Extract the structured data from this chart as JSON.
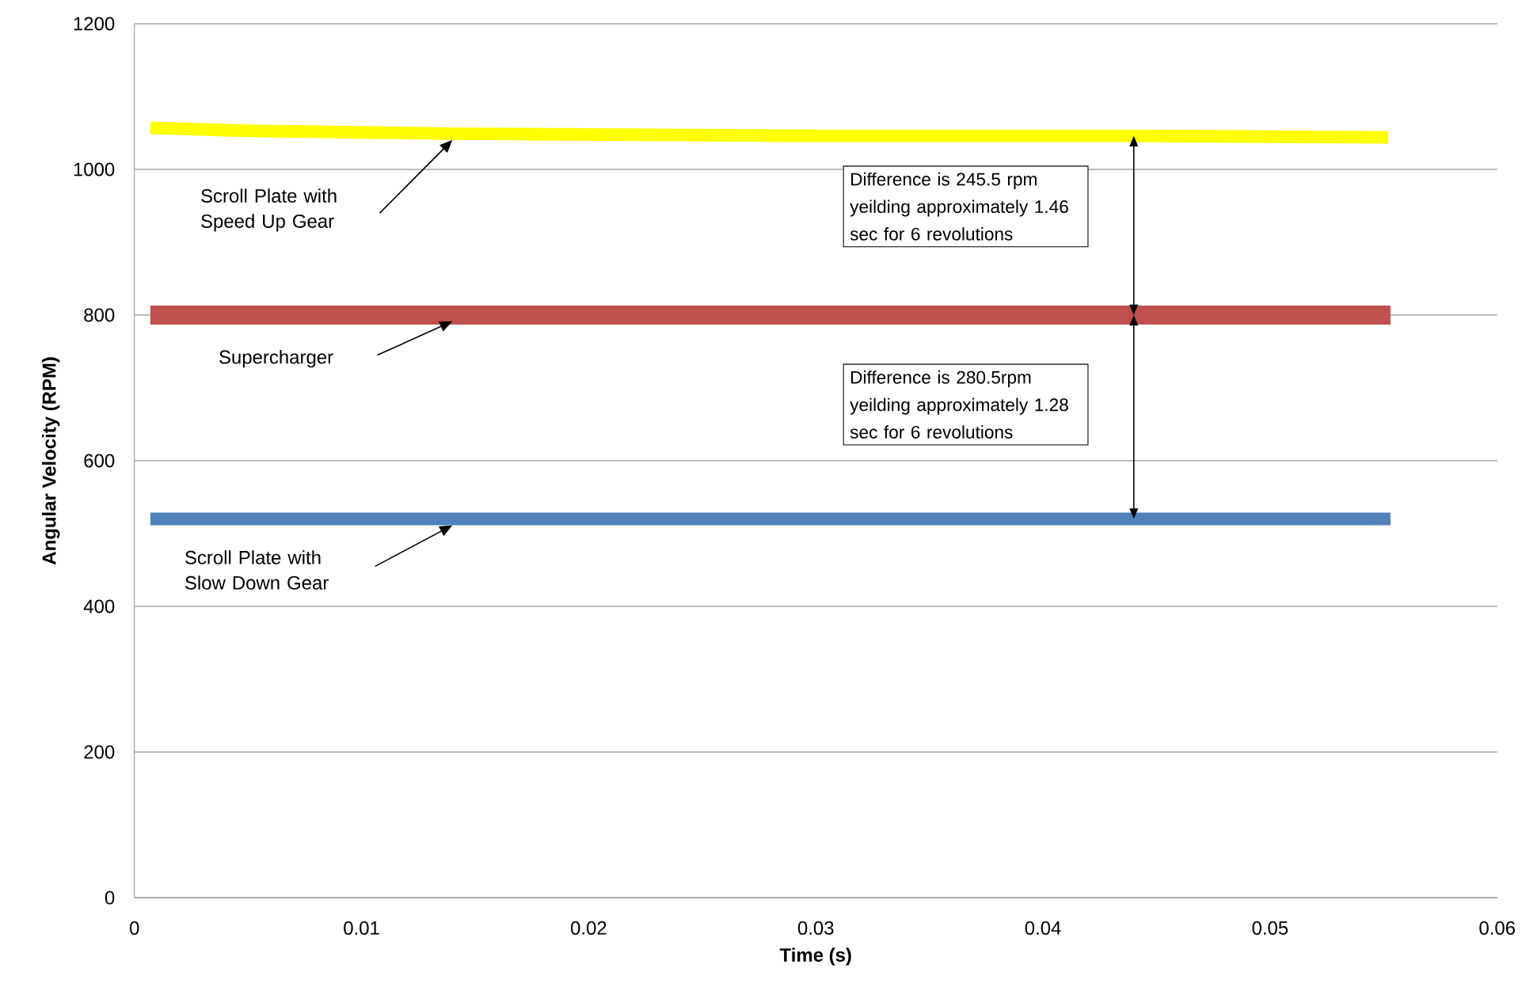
{
  "chart_data": {
    "type": "line",
    "xlabel": "Time (s)",
    "ylabel": "Angular Velocity (RPM)",
    "xlim": [
      0,
      0.06
    ],
    "xticks": [
      0,
      0.01,
      0.02,
      0.03,
      0.04,
      0.05,
      0.06
    ],
    "ylim": [
      0,
      1200
    ],
    "yticks": [
      0,
      200,
      400,
      600,
      800,
      1000,
      1200
    ],
    "grid": "y",
    "series": [
      {
        "name": "Scroll Plate with Speed Up Gear",
        "color": "#ffff00",
        "x": [
          0.0007,
          0.005,
          0.014,
          0.03,
          0.044,
          0.0552
        ],
        "values": [
          1057,
          1053,
          1049,
          1046,
          1046,
          1044
        ]
      },
      {
        "name": "Supercharger",
        "color": "#c0504d",
        "x": [
          0.0007,
          0.005,
          0.014,
          0.03,
          0.044,
          0.0553
        ],
        "values": [
          800,
          800,
          800,
          800,
          800,
          800
        ]
      },
      {
        "name": "Scroll Plate with Slow Down Gear",
        "color": "#4f81bd",
        "x": [
          0.0007,
          0.005,
          0.014,
          0.03,
          0.044,
          0.0553
        ],
        "values": [
          520,
          520,
          520,
          520,
          520,
          520
        ]
      }
    ],
    "annotations": [
      "Difference is 245.5 rpm yeilding  approximately 1.46 sec for 6 revolutions",
      "Difference is 280.5rpm yeilding  approximately 1.28 sec for 6 revolutions"
    ]
  }
}
